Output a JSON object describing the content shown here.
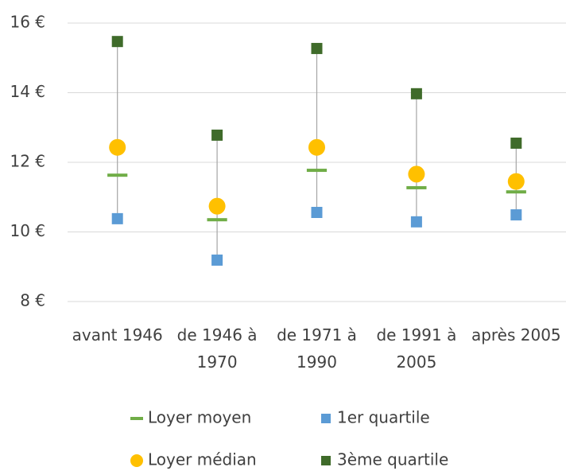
{
  "chart_data": {
    "type": "high-low",
    "categories": [
      "avant 1946",
      "de 1946 à 1970",
      "de 1971 à 1990",
      "de 1991 à 2005",
      "après 2005"
    ],
    "series": [
      {
        "name": "Loyer moyen",
        "color": "#70ad47",
        "marker": "dash",
        "values": [
          11.63,
          10.35,
          11.77,
          11.27,
          11.15
        ]
      },
      {
        "name": "1er quartile",
        "color": "#5b9bd5",
        "marker": "square",
        "values": [
          10.38,
          9.19,
          10.56,
          10.29,
          10.49
        ]
      },
      {
        "name": "Loyer médian",
        "color": "#ffc000",
        "marker": "circle",
        "values": [
          12.43,
          10.74,
          12.43,
          11.66,
          11.45
        ]
      },
      {
        "name": "3ème quartile",
        "color": "#3f6b2a",
        "marker": "square",
        "values": [
          15.47,
          12.78,
          15.27,
          13.97,
          12.55
        ]
      }
    ],
    "ylim": [
      8,
      16
    ],
    "yticks": [
      {
        "value": 8,
        "label": "8 €"
      },
      {
        "value": 10,
        "label": "10 €"
      },
      {
        "value": 12,
        "label": "12 €"
      },
      {
        "value": 14,
        "label": "14 €"
      },
      {
        "value": 16,
        "label": "16 €"
      }
    ],
    "grid": true,
    "legend": "bottom"
  }
}
